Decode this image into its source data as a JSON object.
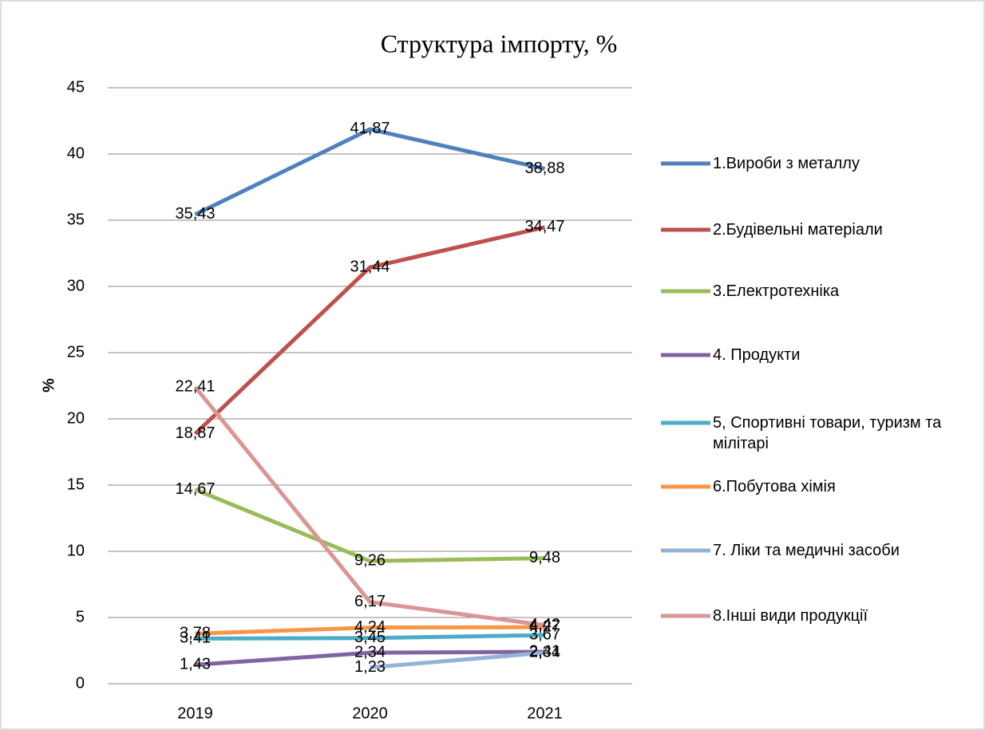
{
  "chart_data": {
    "type": "line",
    "title": "Структура імпорту, %",
    "y_label": "%",
    "categories": [
      "2019",
      "2020",
      "2021"
    ],
    "ylim": [
      0,
      45
    ],
    "yticks": [
      0,
      5,
      10,
      15,
      20,
      25,
      30,
      35,
      40,
      45
    ],
    "grid": true,
    "legend": "right",
    "series": [
      {
        "name": "1.Вироби з металлу",
        "color": "#4f81bd",
        "values": [
          35.43,
          41.87,
          38.88
        ],
        "value_labels": [
          "35,43",
          "41,87",
          "38,88"
        ]
      },
      {
        "name": "2.Будівельні матеріали",
        "color": "#c0504d",
        "values": [
          18.87,
          31.44,
          34.47
        ],
        "value_labels": [
          "18,87",
          "31,44",
          "34,47"
        ]
      },
      {
        "name": "3.Електротехніка",
        "color": "#9bbb59",
        "values": [
          14.67,
          9.26,
          9.48
        ],
        "value_labels": [
          "14,67",
          "9,26",
          "9,48"
        ]
      },
      {
        "name": "4. Продукти",
        "color": "#8064a2",
        "values": [
          1.43,
          2.34,
          2.41
        ],
        "value_labels": [
          "1,43",
          "2,34",
          "2,41"
        ]
      },
      {
        "name": "5, Спортивні товари, туризм та мілітарі",
        "color": "#4bacc6",
        "values": [
          3.41,
          3.45,
          3.67
        ],
        "value_labels": [
          "3,41",
          "3,45",
          "3,67"
        ]
      },
      {
        "name": "6.Побутова хімія",
        "color": "#f79646",
        "values": [
          3.78,
          4.24,
          4.27
        ],
        "value_labels": [
          "3,78",
          "4,24",
          "4,27"
        ]
      },
      {
        "name": "7. Ліки та медичні засоби",
        "color": "#95b3d7",
        "values": [
          null,
          1.23,
          2.34
        ],
        "value_labels": [
          null,
          "1,23",
          "2,34"
        ]
      },
      {
        "name": "8.Інші види продукції",
        "color": "#d99694",
        "values": [
          22.41,
          6.17,
          4.42
        ],
        "value_labels": [
          "22,41",
          "6,17",
          "4,42"
        ]
      }
    ]
  }
}
